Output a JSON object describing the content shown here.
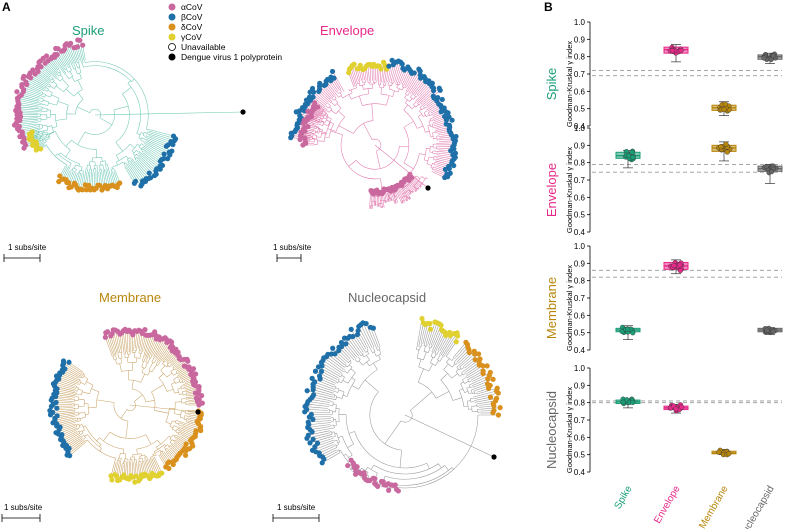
{
  "panel_labels": {
    "a": "A",
    "b": "B"
  },
  "colors": {
    "spike": "#1a9e77",
    "envelope": "#e7298a",
    "membrane": "#b8860b",
    "nucleocapsid": "#666666",
    "alpha": "#c9689e",
    "beta": "#1f6fa8",
    "delta": "#d9901c",
    "gamma": "#e0d030",
    "unavailable": "#ffffff",
    "dengue": "#000000"
  },
  "legend": {
    "items": [
      {
        "key": "alpha",
        "label": "αCoV"
      },
      {
        "key": "beta",
        "label": "βCoV"
      },
      {
        "key": "delta",
        "label": "δCoV"
      },
      {
        "key": "gamma",
        "label": "γCoV"
      },
      {
        "key": "unavailable",
        "label": "Unavailable"
      },
      {
        "key": "dengue",
        "label": "Dengue virus 1 polyprotein"
      }
    ]
  },
  "trees": [
    {
      "id": "spike",
      "title": "Spike",
      "scale_label": "1 subs/site"
    },
    {
      "id": "envelope",
      "title": "Envelope",
      "scale_label": "1 subs/site"
    },
    {
      "id": "membrane",
      "title": "Membrane",
      "scale_label": "1 subs/site"
    },
    {
      "id": "nucleocapsid",
      "title": "Nucleocapsid",
      "scale_label": "1 subs/site"
    }
  ],
  "chart_data": {
    "type": "box",
    "ylabel": "Goodman-Kruskal γ index",
    "categories": [
      "Spike",
      "Envelope",
      "Membrane",
      "Nucleocapsid"
    ],
    "ylim": [
      0.4,
      1.0
    ],
    "yticks": [
      "0.4",
      "0.5",
      "0.6",
      "0.7",
      "0.8",
      "0.9",
      "1.0"
    ],
    "rows": [
      {
        "name": "Spike",
        "ref_lines": [
          0.72,
          0.69
        ],
        "boxes": [
          {
            "q1": 0.82,
            "median": 0.84,
            "q3": 0.855,
            "min": 0.77,
            "max": 0.87
          },
          {
            "q1": 0.49,
            "median": 0.505,
            "q3": 0.52,
            "min": 0.46,
            "max": 0.54
          },
          {
            "q1": 0.785,
            "median": 0.8,
            "q3": 0.81,
            "min": 0.76,
            "max": 0.82
          }
        ],
        "box_cats": [
          1,
          2,
          3
        ]
      },
      {
        "name": "Envelope",
        "ref_lines": [
          0.79,
          0.745
        ],
        "boxes": [
          {
            "q1": 0.825,
            "median": 0.84,
            "q3": 0.86,
            "min": 0.77,
            "max": 0.87
          },
          {
            "q1": 0.865,
            "median": 0.885,
            "q3": 0.9,
            "min": 0.81,
            "max": 0.92
          },
          {
            "q1": 0.75,
            "median": 0.765,
            "q3": 0.78,
            "min": 0.68,
            "max": 0.79
          }
        ],
        "box_cats": [
          0,
          2,
          3
        ]
      },
      {
        "name": "Membrane",
        "ref_lines": [
          0.86,
          0.82
        ],
        "boxes": [
          {
            "q1": 0.505,
            "median": 0.515,
            "q3": 0.525,
            "min": 0.46,
            "max": 0.54
          },
          {
            "q1": 0.865,
            "median": 0.885,
            "q3": 0.905,
            "min": 0.84,
            "max": 0.92
          },
          {
            "q1": 0.505,
            "median": 0.515,
            "q3": 0.525,
            "min": 0.49,
            "max": 0.53
          }
        ],
        "box_cats": [
          0,
          1,
          3
        ]
      },
      {
        "name": "Nucleocapsid",
        "ref_lines": [
          0.81,
          0.8
        ],
        "boxes": [
          {
            "q1": 0.795,
            "median": 0.805,
            "q3": 0.815,
            "min": 0.77,
            "max": 0.82
          },
          {
            "q1": 0.76,
            "median": 0.77,
            "q3": 0.78,
            "min": 0.74,
            "max": 0.79
          },
          {
            "q1": 0.505,
            "median": 0.51,
            "q3": 0.52,
            "min": 0.5,
            "max": 0.525
          }
        ],
        "box_cats": [
          0,
          1,
          2
        ]
      }
    ]
  }
}
